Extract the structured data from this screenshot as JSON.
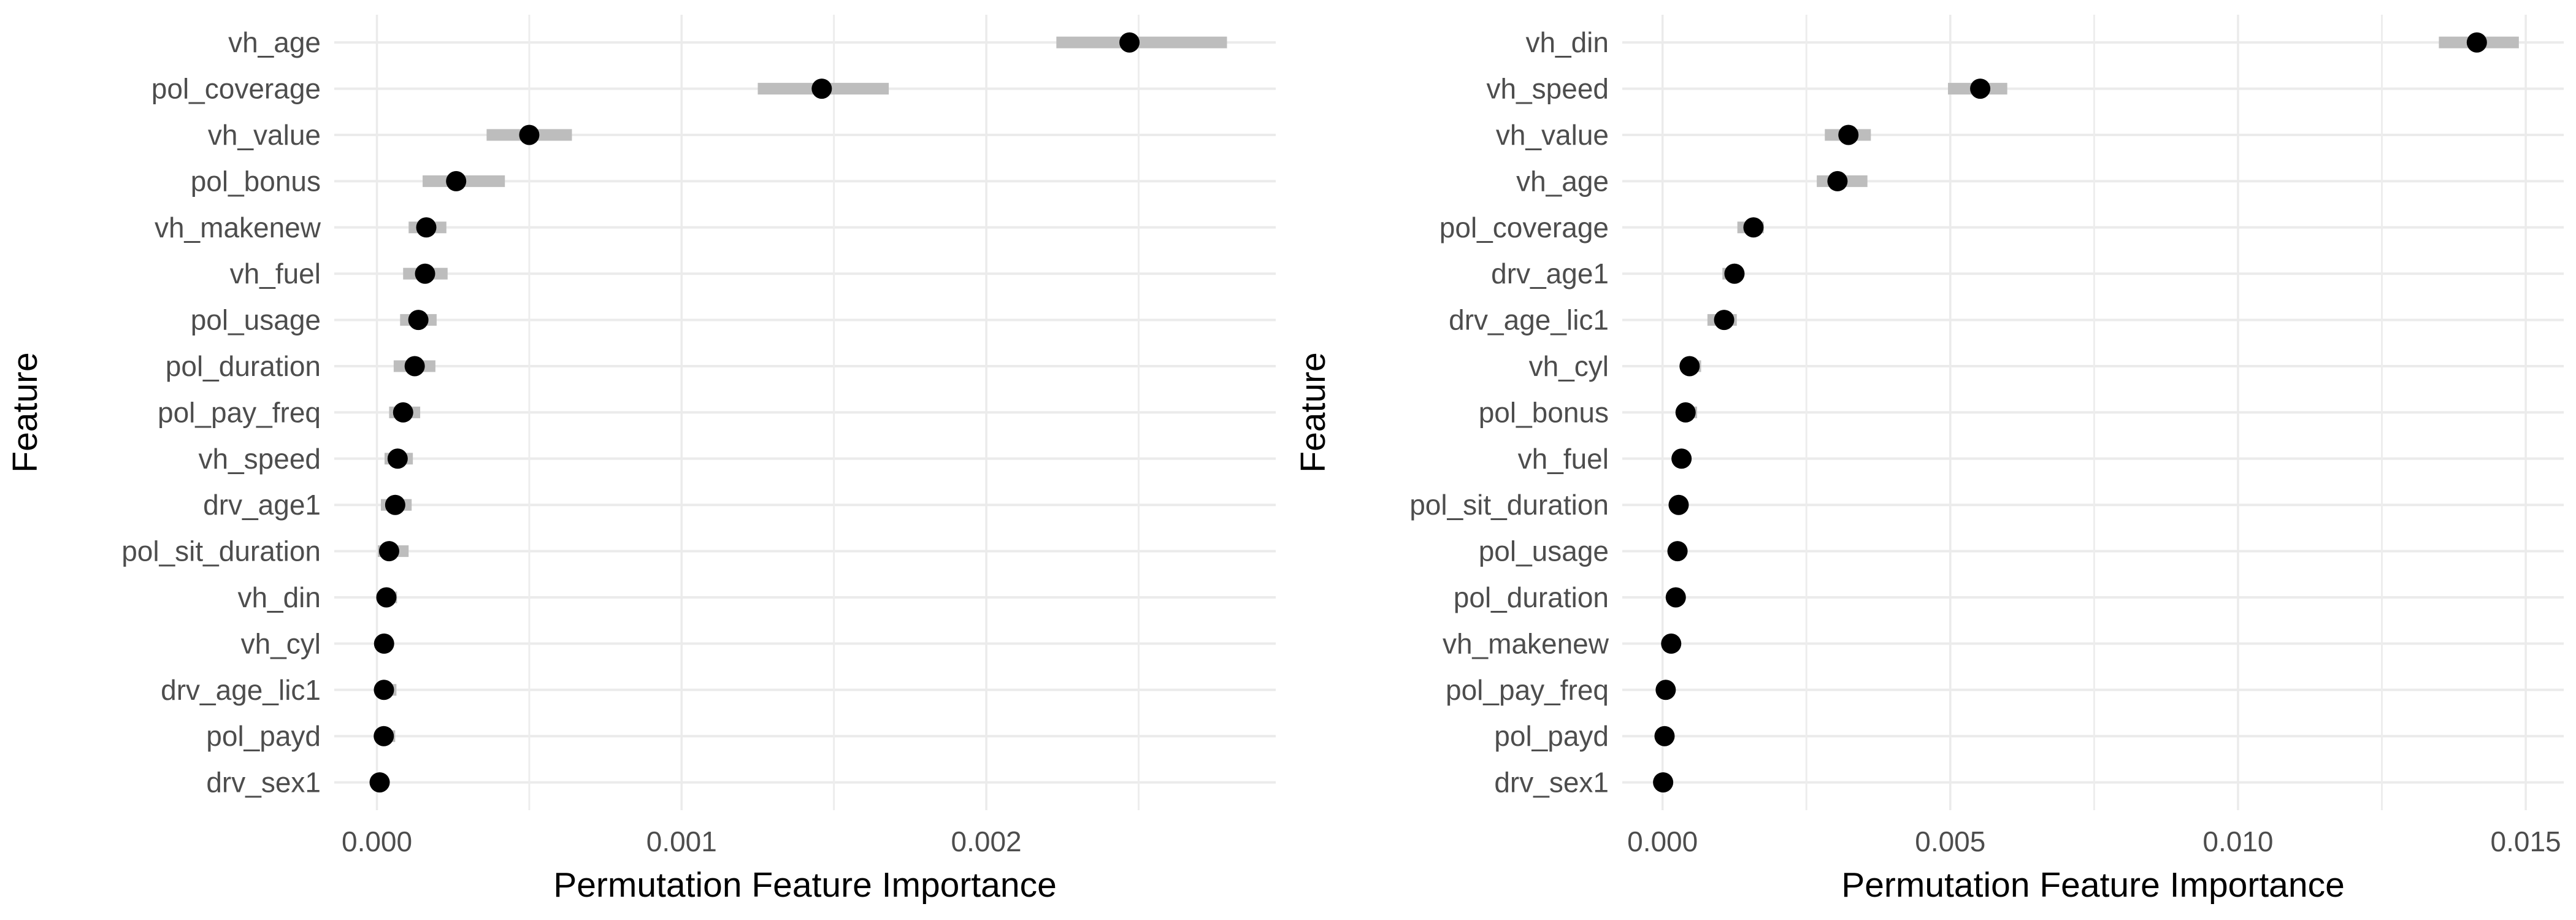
{
  "page": {
    "background": "#ffffff"
  },
  "colors": {
    "dot": "#000000",
    "error_bar": "#bdbdbd",
    "grid_major": "#ebebeb",
    "grid_minor": "#ededed",
    "tick_label": "#4d4d4d",
    "axis_title": "#000000"
  },
  "chart_data": [
    {
      "type": "scatter",
      "subtype": "dot-plot-with-error-bars",
      "title": "",
      "xlabel": "Permutation Feature Importance",
      "ylabel": "Feature",
      "legend": false,
      "grid": true,
      "categories": [
        "vh_age",
        "pol_coverage",
        "vh_value",
        "pol_bonus",
        "vh_makenew",
        "vh_fuel",
        "pol_usage",
        "pol_duration",
        "pol_pay_freq",
        "vh_speed",
        "drv_age1",
        "pol_sit_duration",
        "vh_din",
        "vh_cyl",
        "drv_age_lic1",
        "pol_payd",
        "drv_sex1"
      ],
      "values": [
        0.00247,
        0.00146,
        0.0005,
        0.00026,
        0.000162,
        0.000158,
        0.000136,
        0.000124,
        8.6e-05,
        6.8e-05,
        6e-05,
        4e-05,
        3.1e-05,
        2.35e-05,
        2.3e-05,
        2.25e-05,
        9e-06
      ],
      "error_low": [
        0.00223,
        0.00125,
        0.00036,
        0.00015,
        0.000104,
        8.6e-05,
        7.6e-05,
        5.5e-05,
        4e-05,
        2.5e-05,
        1.3e-05,
        3e-06,
        8e-06,
        8e-06,
        2e-06,
        2e-06,
        1e-06
      ],
      "error_high": [
        0.00279,
        0.00168,
        0.00064,
        0.00042,
        0.000228,
        0.000232,
        0.000196,
        0.000192,
        0.000142,
        0.000118,
        0.000114,
        0.000104,
        6.6e-05,
        4.5e-05,
        6.4e-05,
        6e-05,
        2.2e-05
      ],
      "xticks": [
        0,
        0.001,
        0.002
      ],
      "xtick_labels": [
        "0.000",
        "0.001",
        "0.002"
      ],
      "minor_step": 0.0005,
      "xlim": [
        -0.00014,
        0.00295
      ]
    },
    {
      "type": "scatter",
      "subtype": "dot-plot-with-error-bars",
      "title": "",
      "xlabel": "Permutation Feature Importance",
      "ylabel": "Feature",
      "legend": false,
      "grid": true,
      "categories": [
        "vh_din",
        "vh_speed",
        "vh_value",
        "vh_age",
        "pol_coverage",
        "drv_age1",
        "drv_age_lic1",
        "vh_cyl",
        "pol_bonus",
        "vh_fuel",
        "pol_sit_duration",
        "pol_usage",
        "pol_duration",
        "vh_makenew",
        "pol_pay_freq",
        "pol_payd",
        "drv_sex1"
      ],
      "values": [
        0.01415,
        0.00552,
        0.00323,
        0.00304,
        0.00158,
        0.00125,
        0.00107,
        0.00047,
        0.0004,
        0.00033,
        0.00028,
        0.00026,
        0.00023,
        0.00015,
        5.5e-05,
        3.5e-05,
        1e-05
      ],
      "error_low": [
        0.01349,
        0.00496,
        0.00282,
        0.00268,
        0.0013,
        0.00104,
        0.00078,
        0.00032,
        0.00028,
        0.00024,
        0.0002,
        0.00019,
        0.00016,
        0.0001,
        2e-05,
        1e-05,
        0.0
      ],
      "error_high": [
        0.01488,
        0.00599,
        0.00362,
        0.00356,
        0.00176,
        0.00139,
        0.00129,
        0.00067,
        0.0006,
        0.00045,
        0.00038,
        0.00034,
        0.0003,
        0.00021,
        0.0001,
        7e-05,
        2.2e-05
      ],
      "xticks": [
        0,
        0.005,
        0.01,
        0.015
      ],
      "xtick_labels": [
        "0.000",
        "0.005",
        "0.010",
        "0.015"
      ],
      "minor_step": 0.0025,
      "xlim": [
        -0.0007,
        0.01566
      ]
    }
  ]
}
